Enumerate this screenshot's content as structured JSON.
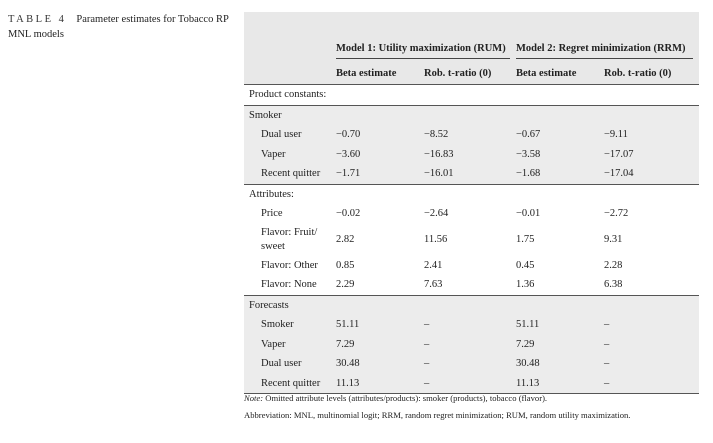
{
  "caption": {
    "label": "TABLE 4",
    "text": "Parameter estimates for Tobacco RP MNL models"
  },
  "header": {
    "model1": "Model 1: Utility maximization (RUM)",
    "model2": "Model 2: Regret minimization (RRM)",
    "subheads": [
      "Beta estimate",
      "Rob. t-ratio (0)",
      "Beta estimate",
      "Rob. t-ratio (0)"
    ]
  },
  "rows": [
    {
      "label": "Product constants:",
      "type": "section",
      "shade": false,
      "cells": [
        "",
        "",
        "",
        ""
      ]
    },
    {
      "label": "Smoker",
      "type": "section",
      "shade": true,
      "cells": [
        "",
        "",
        "",
        ""
      ]
    },
    {
      "label": "Dual user",
      "type": "item",
      "shade": true,
      "cells": [
        "−0.70",
        "−8.52",
        "−0.67",
        "−9.11"
      ]
    },
    {
      "label": "Vaper",
      "type": "item",
      "shade": true,
      "cells": [
        "−3.60",
        "−16.83",
        "−3.58",
        "−17.07"
      ]
    },
    {
      "label": "Recent quitter",
      "type": "item",
      "shade": true,
      "cells": [
        "−1.71",
        "−16.01",
        "−1.68",
        "−17.04"
      ]
    },
    {
      "label": "Attributes:",
      "type": "section",
      "shade": false,
      "cells": [
        "",
        "",
        "",
        ""
      ]
    },
    {
      "label": "Price",
      "type": "item",
      "shade": false,
      "cells": [
        "−0.02",
        "−2.64",
        "−0.01",
        "−2.72"
      ]
    },
    {
      "label": "Flavor: Fruit/ sweet",
      "type": "item",
      "shade": false,
      "tall": true,
      "cells": [
        "2.82",
        "11.56",
        "1.75",
        "9.31"
      ]
    },
    {
      "label": "Flavor: Other",
      "type": "item",
      "shade": false,
      "cells": [
        "0.85",
        "2.41",
        "0.45",
        "2.28"
      ]
    },
    {
      "label": "Flavor: None",
      "type": "item",
      "shade": false,
      "cells": [
        "2.29",
        "7.63",
        "1.36",
        "6.38"
      ]
    },
    {
      "label": "Forecasts",
      "type": "section",
      "shade": true,
      "cells": [
        "",
        "",
        "",
        ""
      ]
    },
    {
      "label": "Smoker",
      "type": "item",
      "shade": true,
      "cells": [
        "51.11",
        "–",
        "51.11",
        "–"
      ]
    },
    {
      "label": "Vaper",
      "type": "item",
      "shade": true,
      "cells": [
        "7.29",
        "–",
        "7.29",
        "–"
      ]
    },
    {
      "label": "Dual user",
      "type": "item",
      "shade": true,
      "cells": [
        "30.48",
        "–",
        "30.48",
        "–"
      ]
    },
    {
      "label": "Recent quitter",
      "type": "item",
      "shade": true,
      "cells": [
        "11.13",
        "–",
        "11.13",
        "–"
      ]
    }
  ],
  "notes": {
    "note_label": "Note:",
    "note_text": "Omitted attribute levels (attributes/products): smoker (products), tobacco (flavor).",
    "abbrev": "Abbreviation: MNL, multinomial logit; RRM, random regret minimization; RUM, random utility maximization."
  }
}
